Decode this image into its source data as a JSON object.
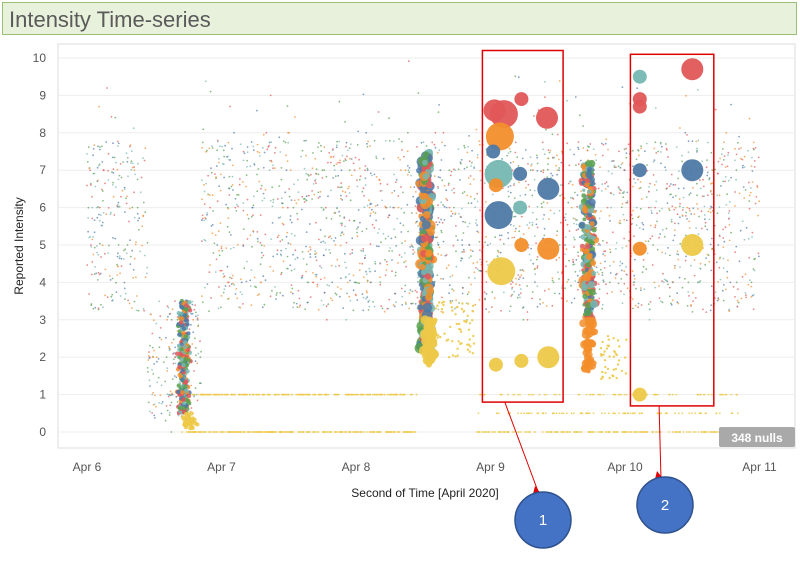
{
  "title": "Intensity Time-series",
  "chart_data": {
    "type": "scatter",
    "title": "Intensity Time-series",
    "xlabel": "Second of Time [April 2020]",
    "ylabel": "Reported Intensity",
    "x_ticks": [
      "Apr 6",
      "Apr 7",
      "Apr 8",
      "Apr 9",
      "Apr 10",
      "Apr 11"
    ],
    "xlim": [
      "Apr 6",
      "Apr 11"
    ],
    "y_ticks": [
      0,
      1,
      2,
      3,
      4,
      5,
      6,
      7,
      8,
      9,
      10
    ],
    "ylim": [
      0,
      10
    ],
    "grid": "horizontal",
    "nulls_badge": "348 nulls",
    "palette": [
      "#e15759",
      "#f28e2b",
      "#4e79a7",
      "#76b7b2",
      "#59a14f",
      "#edc948"
    ],
    "highlight_points": [
      {
        "x": 9.1,
        "y": 8.5,
        "size": "large",
        "color": "#e15759"
      },
      {
        "x": 9.03,
        "y": 8.6,
        "size": "medium",
        "color": "#e15759"
      },
      {
        "x": 9.23,
        "y": 8.9,
        "size": "small",
        "color": "#e15759"
      },
      {
        "x": 9.42,
        "y": 8.4,
        "size": "medium",
        "color": "#e15759"
      },
      {
        "x": 9.07,
        "y": 7.9,
        "size": "large",
        "color": "#f28e2b"
      },
      {
        "x": 9.02,
        "y": 7.5,
        "size": "small",
        "color": "#4e79a7"
      },
      {
        "x": 9.06,
        "y": 6.9,
        "size": "large",
        "color": "#76b7b2"
      },
      {
        "x": 9.04,
        "y": 6.6,
        "size": "small",
        "color": "#f28e2b"
      },
      {
        "x": 9.22,
        "y": 6.9,
        "size": "small",
        "color": "#4e79a7"
      },
      {
        "x": 9.43,
        "y": 6.5,
        "size": "medium",
        "color": "#4e79a7"
      },
      {
        "x": 9.06,
        "y": 5.8,
        "size": "large",
        "color": "#4e79a7"
      },
      {
        "x": 9.22,
        "y": 6.0,
        "size": "small",
        "color": "#76b7b2"
      },
      {
        "x": 9.23,
        "y": 5.0,
        "size": "small",
        "color": "#f28e2b"
      },
      {
        "x": 9.43,
        "y": 4.9,
        "size": "medium",
        "color": "#f28e2b"
      },
      {
        "x": 9.08,
        "y": 4.3,
        "size": "large",
        "color": "#edc948"
      },
      {
        "x": 9.04,
        "y": 1.8,
        "size": "small",
        "color": "#edc948"
      },
      {
        "x": 9.23,
        "y": 1.9,
        "size": "small",
        "color": "#edc948"
      },
      {
        "x": 9.43,
        "y": 2.0,
        "size": "medium",
        "color": "#edc948"
      },
      {
        "x": 10.11,
        "y": 9.5,
        "size": "small",
        "color": "#76b7b2"
      },
      {
        "x": 10.11,
        "y": 8.9,
        "size": "small",
        "color": "#e15759"
      },
      {
        "x": 10.11,
        "y": 8.7,
        "size": "small",
        "color": "#e15759"
      },
      {
        "x": 10.5,
        "y": 9.7,
        "size": "medium",
        "color": "#e15759"
      },
      {
        "x": 10.11,
        "y": 7.0,
        "size": "small",
        "color": "#4e79a7"
      },
      {
        "x": 10.5,
        "y": 7.0,
        "size": "medium",
        "color": "#4e79a7"
      },
      {
        "x": 10.11,
        "y": 4.9,
        "size": "small",
        "color": "#f28e2b"
      },
      {
        "x": 10.5,
        "y": 5.0,
        "size": "medium",
        "color": "#edc948"
      },
      {
        "x": 10.11,
        "y": 1.0,
        "size": "small",
        "color": "#edc948"
      }
    ],
    "highlight_boxes": [
      {
        "label": "1",
        "x_start": 8.94,
        "x_end": 9.54,
        "y_start": 0.8,
        "y_end": 10.2
      },
      {
        "label": "2",
        "x_start": 10.04,
        "x_end": 10.66,
        "y_start": 0.7,
        "y_end": 10.1
      }
    ]
  }
}
